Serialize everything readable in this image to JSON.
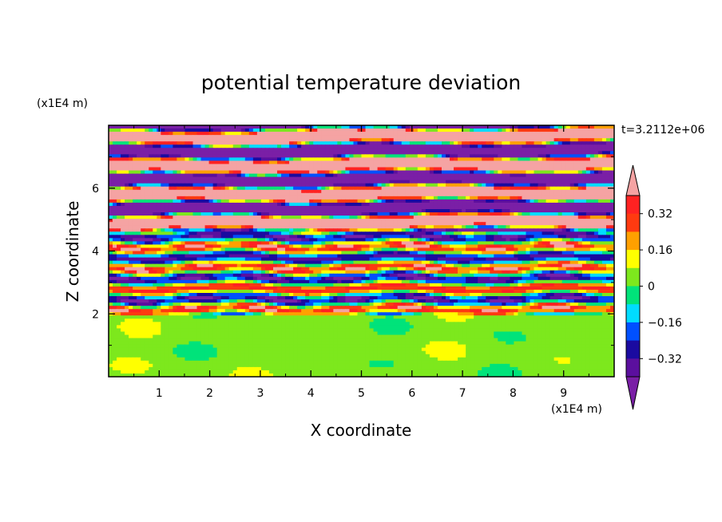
{
  "chart_data": {
    "type": "heatmap",
    "title": "potential temperature deviation",
    "xlabel": "X coordinate",
    "ylabel": "Z coordinate",
    "x_unit": "(x1E4 m)",
    "y_unit": "(x1E4 m)",
    "time_label": "t=3.2112e+06",
    "xlim": [
      0,
      10
    ],
    "ylim": [
      0,
      8
    ],
    "x_ticks": [
      1,
      2,
      3,
      4,
      5,
      6,
      7,
      8,
      9
    ],
    "y_ticks": [
      2,
      4,
      6
    ],
    "colorbar": {
      "levels": [
        -0.4,
        -0.32,
        -0.24,
        -0.16,
        -0.08,
        0,
        0.08,
        0.16,
        0.24,
        0.32,
        0.4
      ],
      "tick_labels": [
        "0.32",
        "0.16",
        "0",
        "−0.16",
        "−0.32"
      ],
      "tick_values": [
        0.32,
        0.16,
        0,
        -0.16,
        -0.32
      ],
      "extend": "both",
      "colors": [
        "#7a1fa6",
        "#5b0f9e",
        "#1a0aa0",
        "#0050ff",
        "#00dcff",
        "#00e37a",
        "#7de81d",
        "#ffff00",
        "#ffa000",
        "#ff3a10",
        "#ff2222",
        "#f5a3a3"
      ]
    },
    "regions": [
      {
        "z": [
          0,
          2
        ],
        "description_level": "mostly 0 to 0.08 (green/light-green)"
      },
      {
        "z": [
          2,
          4.5
        ],
        "description_level": "mixed -0.32 to 0.32 turbulent layers"
      },
      {
        "z": [
          4.5,
          8
        ],
        "description_level": "alternating bands of > 0.4 (pink) and < -0.32 (purple)"
      }
    ]
  }
}
